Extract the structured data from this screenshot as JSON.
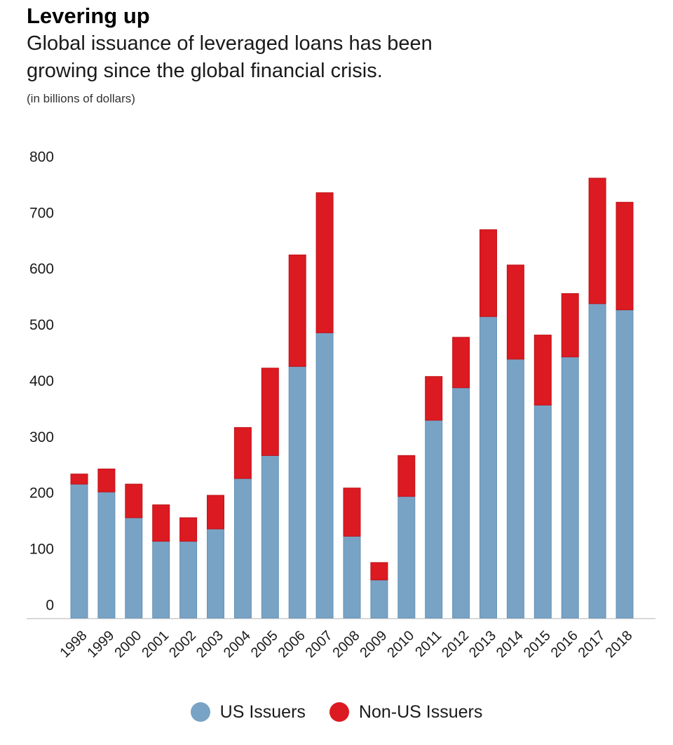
{
  "header": {
    "title": "Levering up",
    "subtitle_line1": "Global issuance of leveraged loans has been",
    "subtitle_line2": "growing since the global financial crisis.",
    "unit_note": "(in billions of dollars)"
  },
  "legend": {
    "items": [
      {
        "label": "US Issuers",
        "color": "#79A3C5"
      },
      {
        "label": "Non-US Issuers",
        "color": "#DC1A21"
      }
    ]
  },
  "chart_data": {
    "type": "bar",
    "stacked": true,
    "title": "Levering up",
    "subtitle": "Global issuance of leveraged loans has been growing since the global financial crisis.",
    "unit_note": "(in billions of dollars)",
    "xlabel": "",
    "ylabel": "billions of dollars",
    "ylim": [
      0,
      800
    ],
    "yticks": [
      0,
      100,
      200,
      300,
      400,
      500,
      600,
      700,
      800
    ],
    "grid": false,
    "legend_position": "bottom",
    "categories": [
      1998,
      1999,
      2000,
      2001,
      2002,
      2003,
      2004,
      2005,
      2006,
      2007,
      2008,
      2009,
      2010,
      2011,
      2012,
      2013,
      2014,
      2015,
      2016,
      2017,
      2018
    ],
    "series": [
      {
        "name": "US Issuers",
        "color": "#79A3C5",
        "values": [
          239,
          225,
          179,
          137,
          137,
          159,
          249,
          290,
          449,
          509,
          146,
          68,
          217,
          353,
          411,
          538,
          462,
          380,
          466,
          561,
          550
        ]
      },
      {
        "name": "Non-US Issuers",
        "color": "#DC1A21",
        "values": [
          18,
          41,
          60,
          65,
          42,
          60,
          91,
          156,
          199,
          250,
          86,
          31,
          73,
          78,
          90,
          155,
          168,
          125,
          113,
          224,
          192
        ]
      }
    ],
    "totals": [
      257,
      266,
      239,
      202,
      179,
      219,
      340,
      446,
      648,
      759,
      232,
      99,
      290,
      431,
      501,
      693,
      630,
      505,
      579,
      785,
      742
    ]
  }
}
